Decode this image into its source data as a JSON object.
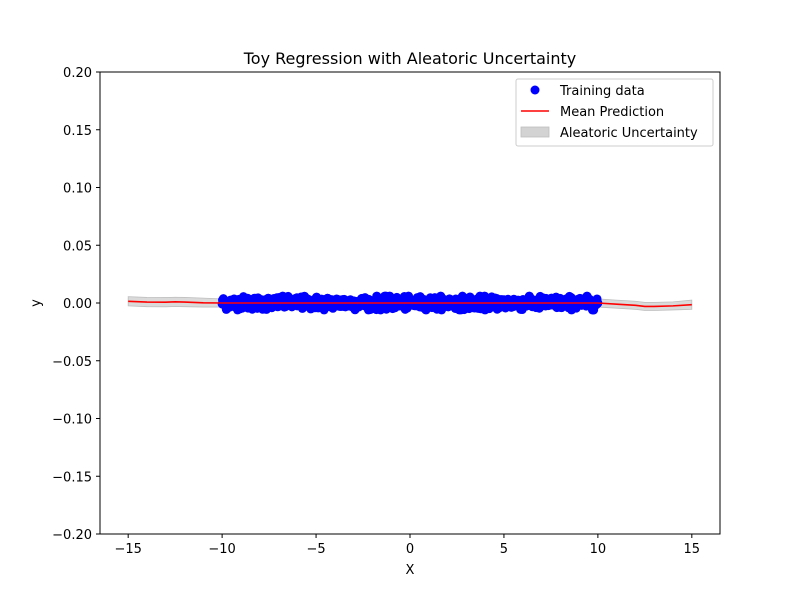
{
  "chart_data": {
    "type": "scatter",
    "title": "Toy Regression with Aleatoric Uncertainty",
    "xlabel": "X",
    "ylabel": "y",
    "xlim": [
      -16.5,
      16.5
    ],
    "ylim": [
      -0.2,
      0.2
    ],
    "xticks": [
      -15,
      -10,
      -5,
      0,
      5,
      10,
      15
    ],
    "yticks": [
      -0.2,
      -0.15,
      -0.1,
      -0.05,
      0.0,
      0.05,
      0.1,
      0.15,
      0.2
    ],
    "xtick_labels": [
      "−15",
      "−10",
      "−5",
      "0",
      "5",
      "10",
      "15"
    ],
    "ytick_labels": [
      "−0.20",
      "−0.15",
      "−0.10",
      "−0.05",
      "0.00",
      "0.05",
      "0.10",
      "0.15",
      "0.20"
    ],
    "grid": false,
    "legend_position": "top-right",
    "series": [
      {
        "name": "Training data",
        "kind": "scatter",
        "color": "#0000ff",
        "x_range": [
          -10,
          10
        ],
        "y_center": 0.0,
        "y_spread": 0.006,
        "n_points": 900
      },
      {
        "name": "Mean Prediction",
        "kind": "line",
        "color": "#ff0000",
        "x": [
          -15,
          -14,
          -13,
          -12.5,
          -12,
          -11,
          -10,
          -5,
          0,
          5,
          10,
          11,
          12,
          12.5,
          13,
          14,
          15
        ],
        "y": [
          0.0015,
          0.0008,
          0.0007,
          0.001,
          0.0008,
          0.0002,
          0.0,
          0.0,
          0.0,
          0.0,
          0.0,
          -0.001,
          -0.002,
          -0.003,
          -0.003,
          -0.0025,
          -0.0015
        ]
      },
      {
        "name": "Aleatoric Uncertainty",
        "kind": "band",
        "color": "#d3d3d3",
        "x": [
          -15,
          -14,
          -13,
          -12.5,
          -12,
          -11,
          -10,
          -5,
          0,
          5,
          10,
          11,
          12,
          12.5,
          13,
          14,
          15
        ],
        "lower": [
          -0.0025,
          -0.0032,
          -0.0033,
          -0.003,
          -0.0032,
          -0.0035,
          -0.0035,
          -0.0035,
          -0.0035,
          -0.0035,
          -0.0035,
          -0.0045,
          -0.0055,
          -0.0065,
          -0.0065,
          -0.006,
          -0.0055
        ],
        "upper": [
          0.0055,
          0.0048,
          0.0047,
          0.005,
          0.0048,
          0.0042,
          0.0035,
          0.0035,
          0.0035,
          0.0035,
          0.0035,
          0.0025,
          0.0015,
          0.0005,
          0.0005,
          0.001,
          0.0025
        ]
      }
    ]
  }
}
